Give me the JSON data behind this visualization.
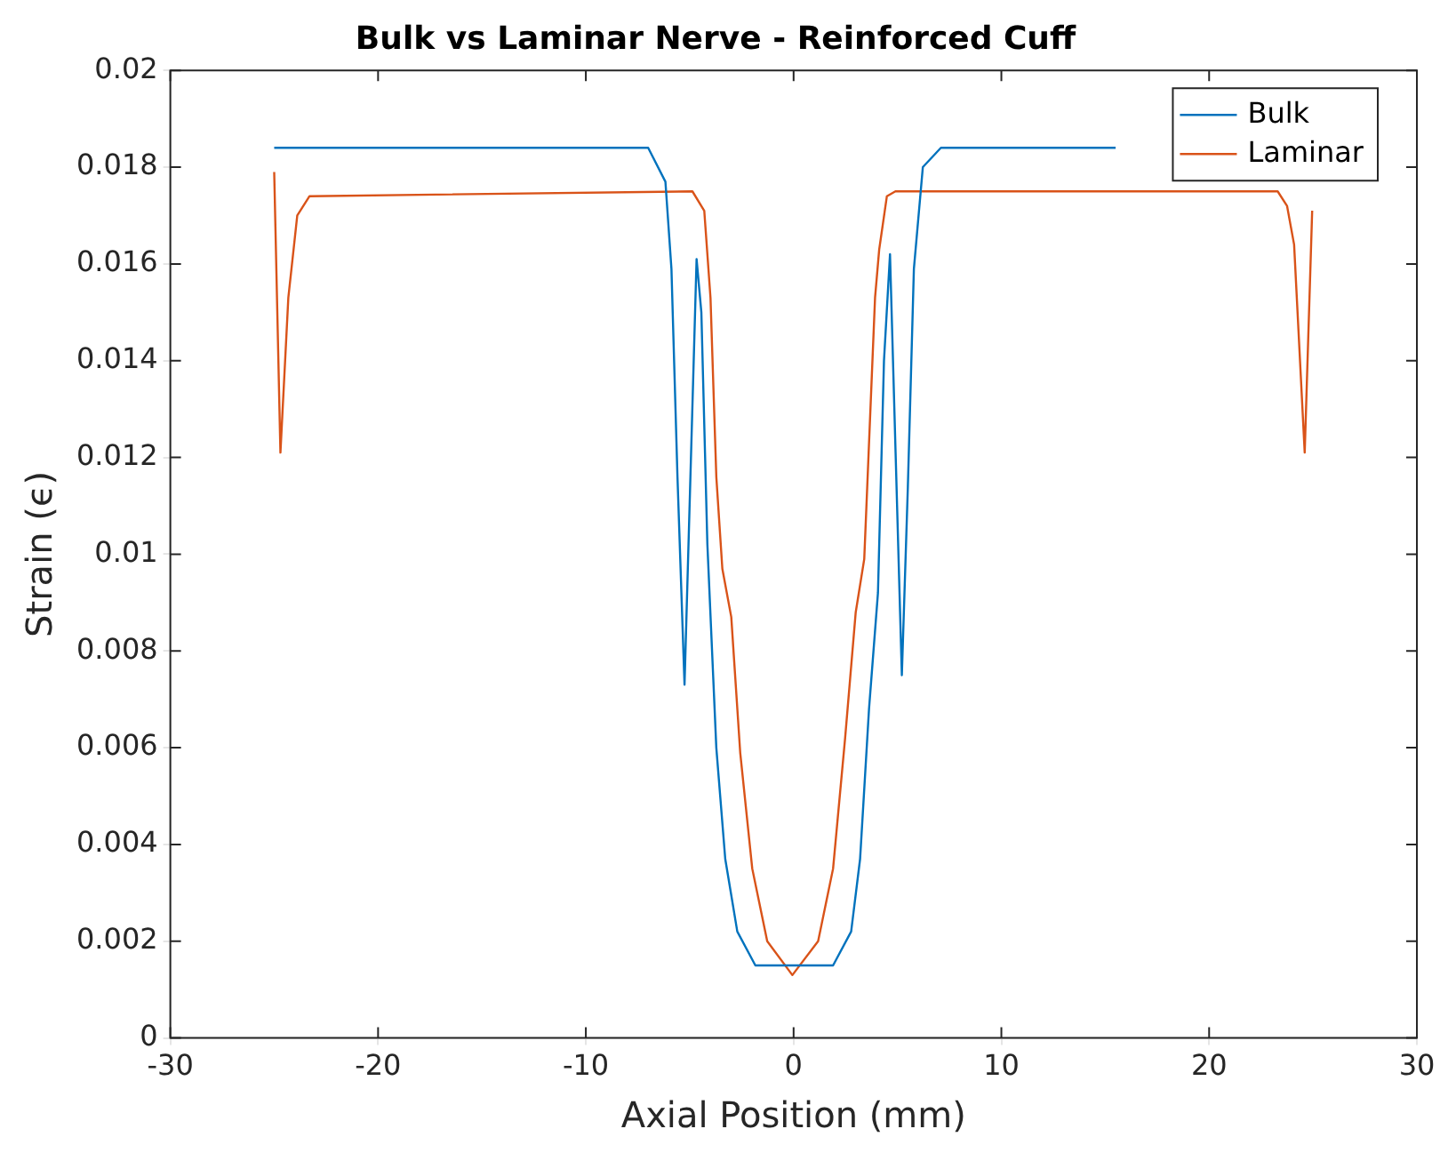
{
  "chart_data": {
    "type": "line",
    "title": "Bulk vs Laminar Nerve - Reinforced Cuff",
    "xlabel": "Axial Position (mm)",
    "ylabel": "Strain (ϵ)",
    "xlim": [
      -30,
      30
    ],
    "xticks": [
      -30,
      -20,
      -10,
      0,
      10,
      20,
      30
    ],
    "ylim": [
      0,
      0.02
    ],
    "yticks": [
      0,
      0.002,
      0.004,
      0.006,
      0.008,
      0.01,
      0.012,
      0.014,
      0.016,
      0.018,
      0.02
    ],
    "grid": false,
    "legend": "top right",
    "marker": "none",
    "line_style": "solid",
    "series": [
      {
        "name": "Bulk",
        "color": "#0072bd",
        "x": [
          -25,
          -7.0,
          -6.17,
          -5.88,
          -5.59,
          -5.25,
          -4.67,
          -4.44,
          -4.15,
          -3.72,
          -3.29,
          -2.71,
          -1.84,
          1.9,
          2.77,
          3.2,
          3.63,
          4.06,
          4.35,
          4.64,
          5.21,
          5.5,
          5.79,
          6.22,
          7.09,
          15.5
        ],
        "values": [
          0.0184,
          0.0184,
          0.0177,
          0.0159,
          0.0116,
          0.0073,
          0.0161,
          0.015,
          0.0102,
          0.006,
          0.0037,
          0.0022,
          0.0015,
          0.0015,
          0.0022,
          0.0037,
          0.0068,
          0.0092,
          0.014,
          0.0162,
          0.0075,
          0.0114,
          0.0159,
          0.018,
          0.0184,
          0.0184
        ]
      },
      {
        "name": "Laminar",
        "color": "#d95319",
        "x": [
          -25,
          -24.7,
          -24.32,
          -23.89,
          -23.3,
          -4.87,
          -4.3,
          -4.0,
          -3.72,
          -3.43,
          -3.0,
          -2.57,
          -1.99,
          -1.27,
          -0.06,
          1.18,
          1.9,
          2.48,
          2.99,
          3.4,
          3.92,
          4.12,
          4.49,
          4.9,
          23.3,
          23.75,
          24.09,
          24.6,
          24.96
        ],
        "values": [
          0.0179,
          0.0121,
          0.0153,
          0.017,
          0.0174,
          0.0175,
          0.0171,
          0.0153,
          0.0116,
          0.0097,
          0.0087,
          0.0059,
          0.0035,
          0.002,
          0.0013,
          0.002,
          0.0035,
          0.0062,
          0.0088,
          0.0099,
          0.0153,
          0.0163,
          0.0174,
          0.0175,
          0.0175,
          0.0172,
          0.0164,
          0.0121,
          0.0171
        ]
      }
    ]
  }
}
